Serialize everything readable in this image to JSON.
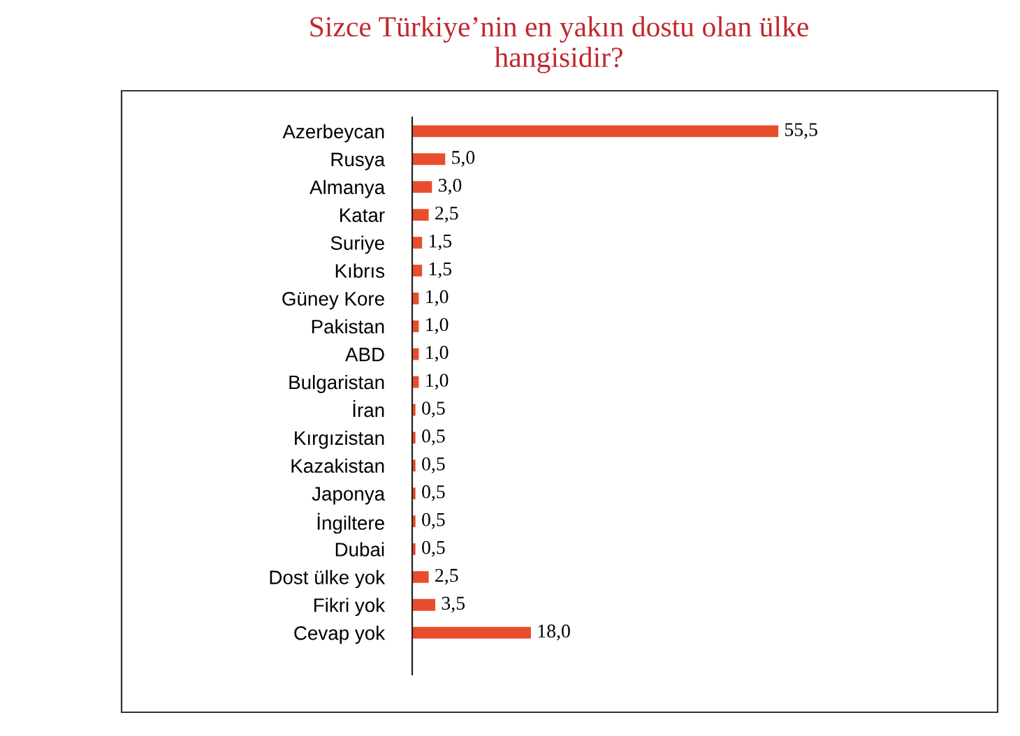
{
  "chart_data": {
    "type": "bar",
    "orientation": "horizontal",
    "title": "Sizce Türkiye’nin en yakın dostu olan ülke\nhangisidir?",
    "categories": [
      "Azerbeycan",
      "Rusya",
      "Almanya",
      "Katar",
      "Suriye",
      "Kıbrıs",
      "Güney Kore",
      "Pakistan",
      "ABD",
      "Bulgaristan",
      "İran",
      "Kırgızistan",
      "Kazakistan",
      "Japonya",
      "İngiltere",
      "Dubai",
      "Dost ülke yok",
      "Fikri yok",
      "Cevap yok"
    ],
    "values": [
      55.5,
      5.0,
      3.0,
      2.5,
      1.5,
      1.5,
      1.0,
      1.0,
      1.0,
      1.0,
      0.5,
      0.5,
      0.5,
      0.5,
      0.5,
      0.5,
      2.5,
      3.5,
      18.0
    ],
    "value_labels": [
      "55,5",
      "5,0",
      "3,0",
      "2,5",
      "1,5",
      "1,5",
      "1,0",
      "1,0",
      "1,0",
      "1,0",
      "0,5",
      "0,5",
      "0,5",
      "0,5",
      "0,5",
      "0,5",
      "2,5",
      "3,5",
      "18,0"
    ],
    "color": "#e84e2c",
    "tick_labels": "y",
    "grid": false,
    "legend": false
  }
}
